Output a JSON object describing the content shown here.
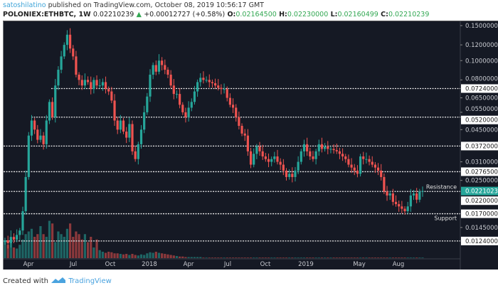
{
  "header": {
    "user": "satoshilatino",
    "published": "published on TradingView.com, October 08, 2019 10:56:17 GMT",
    "symbol": "POLONIEX:ETHBTC, 1W",
    "last": "0.02210239",
    "change": "+0.00012727 (+0.58%)",
    "o_label": "O:",
    "o": "0.02164500",
    "h_label": "H:",
    "h": "0.02230000",
    "l_label": "L:",
    "l": "0.02160499",
    "c_label": "C:",
    "c": "0.02210239"
  },
  "footer": {
    "created": "Created with",
    "brand": "TradingView"
  },
  "colors": {
    "background": "#151924",
    "up": "#26a69a",
    "down": "#ef5350",
    "last_price": "#26a69a"
  },
  "chart_data": {
    "type": "candlestick",
    "interval": "1W",
    "y_scale": "log",
    "ylim": [
      0.0115,
      0.155
    ],
    "y_ticks": [
      "0.15000000",
      "0.12000000",
      "0.10000000",
      "0.08000000",
      "0.06500000",
      "0.05500000",
      "0.04500000",
      "0.03100000",
      "0.02500000",
      "0.01450000"
    ],
    "levels": [
      {
        "value": 0.0724,
        "label": "0.07240000"
      },
      {
        "value": 0.052,
        "label": "0.05200000"
      },
      {
        "value": 0.0372,
        "label": "0.03720000"
      },
      {
        "value": 0.02765,
        "label": "0.02765000"
      },
      {
        "value": 0.022,
        "label": "0.02200000"
      },
      {
        "value": 0.017,
        "label": "0.01700000"
      },
      {
        "value": 0.0124,
        "label": "0.01240000"
      }
    ],
    "last_price": {
      "value": 0.02210239,
      "label": "0.02210239"
    },
    "annotations": {
      "resistance": "Resistance",
      "support": "Support"
    },
    "x_ticks": [
      "Apr",
      "Jul",
      "Oct",
      "2018",
      "Apr",
      "Jul",
      "Oct",
      "2019",
      "May",
      "Aug"
    ],
    "closes": [
      0.0125,
      0.0121,
      0.013,
      0.0126,
      0.0133,
      0.014,
      0.0175,
      0.026,
      0.042,
      0.05,
      0.045,
      0.04,
      0.042,
      0.038,
      0.05,
      0.062,
      0.052,
      0.075,
      0.09,
      0.105,
      0.12,
      0.135,
      0.115,
      0.105,
      0.085,
      0.08,
      0.075,
      0.08,
      0.078,
      0.072,
      0.08,
      0.075,
      0.075,
      0.078,
      0.072,
      0.07,
      0.063,
      0.05,
      0.045,
      0.05,
      0.044,
      0.041,
      0.048,
      0.035,
      0.032,
      0.038,
      0.045,
      0.055,
      0.066,
      0.085,
      0.095,
      0.088,
      0.1,
      0.095,
      0.09,
      0.085,
      0.075,
      0.068,
      0.068,
      0.06,
      0.055,
      0.052,
      0.058,
      0.062,
      0.07,
      0.078,
      0.082,
      0.08,
      0.08,
      0.078,
      0.077,
      0.075,
      0.073,
      0.072,
      0.072,
      0.065,
      0.06,
      0.058,
      0.052,
      0.047,
      0.043,
      0.042,
      0.035,
      0.03,
      0.034,
      0.037,
      0.035,
      0.033,
      0.032,
      0.031,
      0.032,
      0.033,
      0.031,
      0.03,
      0.028,
      0.026,
      0.027,
      0.026,
      0.028,
      0.031,
      0.035,
      0.038,
      0.035,
      0.033,
      0.032,
      0.035,
      0.038,
      0.036,
      0.037,
      0.036,
      0.036,
      0.0355,
      0.035,
      0.034,
      0.033,
      0.032,
      0.03,
      0.029,
      0.028,
      0.027,
      0.033,
      0.032,
      0.032,
      0.031,
      0.03,
      0.029,
      0.028,
      0.026,
      0.022,
      0.021,
      0.0215,
      0.0195,
      0.019,
      0.0185,
      0.018,
      0.0175,
      0.0185,
      0.021,
      0.0215,
      0.02,
      0.022,
      0.0221
    ],
    "volume": [
      30,
      25,
      35,
      20,
      18,
      25,
      35,
      45,
      50,
      55,
      40,
      45,
      60,
      45,
      40,
      70,
      65,
      30,
      50,
      45,
      40,
      55,
      65,
      40,
      50,
      45,
      35,
      45,
      30,
      40,
      20,
      35,
      15,
      12,
      10,
      12,
      11,
      9,
      9,
      8,
      7,
      8,
      6,
      8,
      6,
      5,
      7,
      6,
      9,
      11,
      10,
      12,
      10,
      9,
      8,
      7,
      6,
      5,
      4,
      3,
      3,
      2,
      2,
      2,
      2,
      2,
      2,
      1,
      1,
      1,
      1,
      1,
      1,
      1,
      1,
      1,
      1,
      1,
      1,
      1,
      1,
      1,
      1,
      1,
      1,
      1,
      1,
      1,
      1,
      1,
      1,
      1,
      1,
      1,
      1,
      1,
      1,
      1,
      1,
      1,
      1,
      1,
      1,
      1,
      1,
      1,
      1,
      1,
      1,
      1,
      1,
      1,
      1,
      1,
      1,
      1,
      1,
      1,
      1,
      1,
      1,
      1,
      1,
      1,
      1,
      1,
      1,
      1,
      1,
      1,
      1,
      1,
      1,
      1,
      1,
      1,
      1,
      1,
      1,
      1,
      1,
      1
    ]
  }
}
